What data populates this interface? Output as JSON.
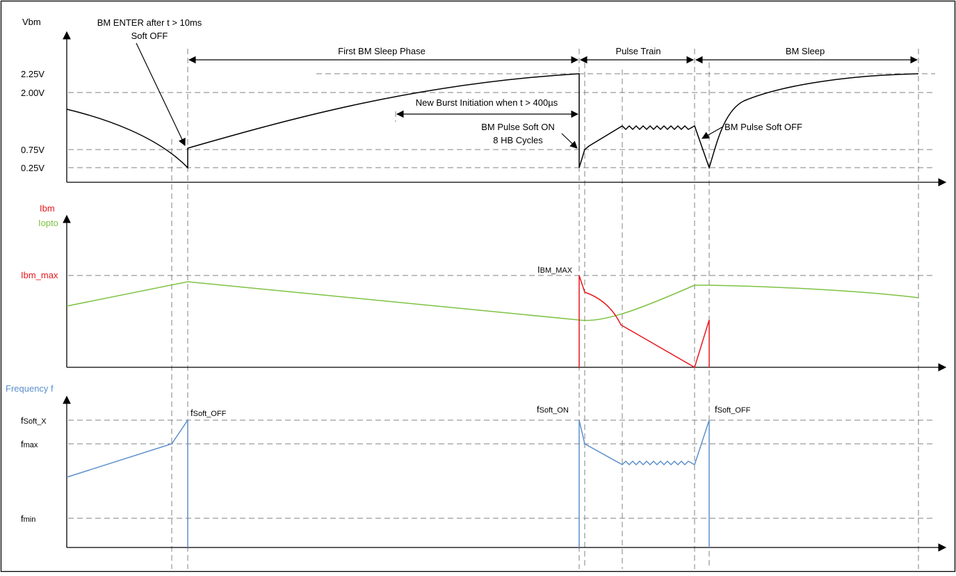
{
  "colors": {
    "vbm": "#000000",
    "ibm": "#e8161b",
    "iopto": "#7dc242",
    "freq": "#5b8fcc",
    "grid": "#808080"
  },
  "vbm_panel": {
    "axis_label": "Vbm",
    "levels": [
      "2.25V",
      "2.00V",
      "0.75V",
      "0.25V"
    ],
    "annotations": {
      "enter_line1": "BM ENTER after t > 10ms",
      "enter_line2": "Soft OFF",
      "first_sleep": "First BM Sleep Phase",
      "pulse_train": "Pulse Train",
      "bm_sleep": "BM Sleep",
      "new_burst": "New Burst Initiation when t > 400µs",
      "soft_on_line1": "BM Pulse Soft ON",
      "soft_on_line2": "8 HB Cycles",
      "soft_off": "BM Pulse Soft OFF"
    }
  },
  "current_panel": {
    "axis_label_ibm": "Ibm",
    "axis_label_iopto": "Iopto",
    "level_ibm_max": "Ibm_max",
    "peak_main": "I",
    "peak_sub": "BM_MAX"
  },
  "freq_panel": {
    "axis_label": "Frequency f",
    "levels": [
      {
        "main": "f",
        "sub": "Soft_X"
      },
      {
        "main": "f",
        "sub": "max"
      },
      {
        "main": "f",
        "sub": "min"
      }
    ],
    "labels": [
      {
        "main": "f",
        "sub": "Soft_OFF"
      },
      {
        "main": "f",
        "sub": "Soft_ON"
      },
      {
        "main": "f",
        "sub": "Soft_OFF"
      }
    ]
  }
}
